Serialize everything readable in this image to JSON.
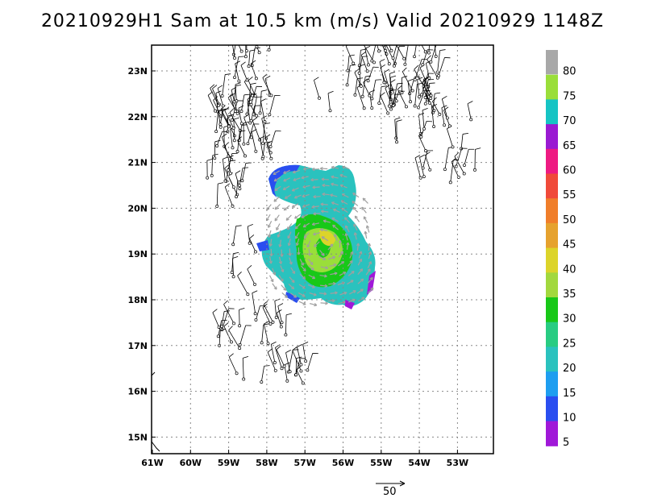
{
  "title": "20210929H1 Sam at 10.5 km (m/s) Valid 20210929 1148Z",
  "lat_labels": [
    "23N",
    "22N",
    "21N",
    "20N",
    "19N",
    "18N",
    "17N",
    "16N",
    "15N"
  ],
  "lon_labels": [
    "61W",
    "60W",
    "59W",
    "58W",
    "57W",
    "56W",
    "55W",
    "54W",
    "53W"
  ],
  "colorbar": {
    "labels": [
      "80",
      "75",
      "70",
      "65",
      "60",
      "55",
      "50",
      "45",
      "40",
      "35",
      "30",
      "25",
      "20",
      "15",
      "10",
      "5"
    ],
    "colors": [
      "#a8a8a8",
      "#9ade3a",
      "#16c4c4",
      "#9a1ad2",
      "#ee1a82",
      "#f04a3a",
      "#f07e2a",
      "#e6a22e",
      "#dcd42a",
      "#a2d83e",
      "#18c818",
      "#28cc82",
      "#2ac2be",
      "#1e9ef0",
      "#2a4ef0",
      "#a018d8"
    ]
  },
  "reference_vector": {
    "label": "50"
  },
  "map_colors": {
    "wind_low": "#2a4ef0",
    "wind_mid": "#2ac2be",
    "wind_high": "#18c818",
    "wind_peak": "#dcd42a",
    "barbs": "#000000",
    "grid": "#888888"
  }
}
